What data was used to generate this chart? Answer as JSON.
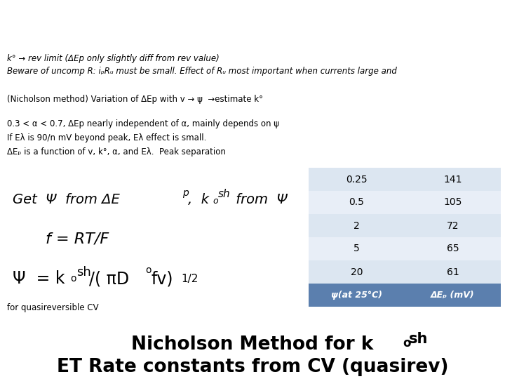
{
  "title_line1": "ET Rate constants from CV (quasirev)",
  "background_color": "#ffffff",
  "table_header_color": "#5b7fae",
  "table_header_text_color": "#ffffff",
  "table_row_color1": "#dce6f1",
  "table_row_color2": "#e8eef7",
  "table_col1_header": "ψ(at 25°C)",
  "table_col2_header": "ΔEₚ (mV)",
  "table_data": [
    [
      "20",
      "61"
    ],
    [
      "5",
      "65"
    ],
    [
      "2",
      "72"
    ],
    [
      "0.5",
      "105"
    ],
    [
      "0.25",
      "141"
    ]
  ],
  "label_quasireversible": "for quasireversible CV",
  "note1": "ΔEₚ is a function of v, k°, α, and Eλ.  Peak separation",
  "note2": "If Eλ is 90/n mV beyond peak, Eλ effect is small.",
  "note3": "0.3 < α < 0.7, ΔEp nearly independent of α, mainly depends on ψ",
  "note4": "(Nicholson method) Variation of ΔEp with v → ψ  →estimate k°",
  "note5": "Beware of uncomp R: iₚRᵤ must be small. Effect of Rᵤ most important when currents large and",
  "note6": "k° → rev limit (ΔEp only slightly diff from rev value)"
}
